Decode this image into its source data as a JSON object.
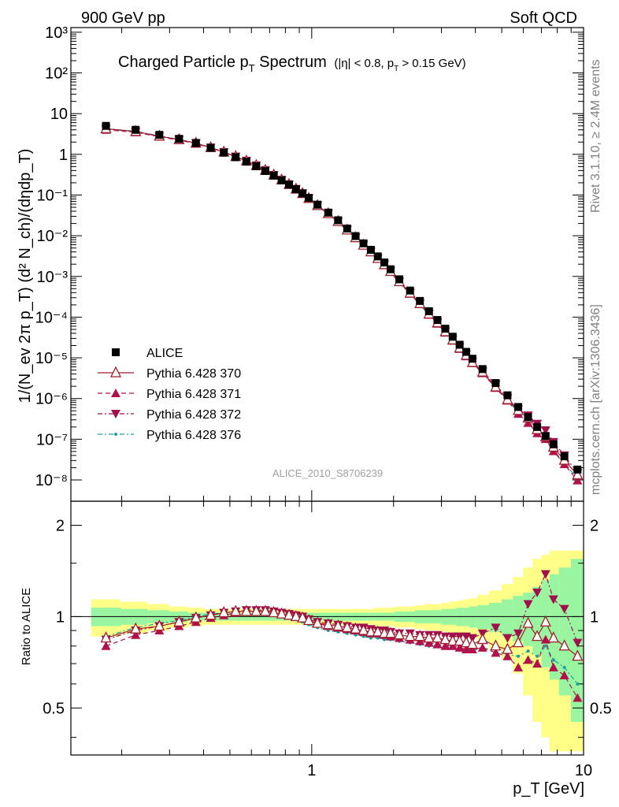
{
  "header": {
    "left": "900 GeV pp",
    "right": "Soft QCD"
  },
  "title": {
    "main": "Charged Particle p",
    "main_sub": "T",
    "main_tail": " Spectrum",
    "cuts_a": "(|η| < 0.8, p",
    "cuts_sub": "T",
    "cuts_b": " > 0.15 GeV)"
  },
  "side_labels": {
    "rivet": "Rivet 3.1.10, ≥ 2.4M events",
    "mcplots": "mcplots.cern.ch [arXiv:1306.3436]"
  },
  "analysis_id": "ALICE_2010_S8706239",
  "axes": {
    "y_main": "1/(N_ev 2π p_T) (d² N_ch)/(dηdp_T)",
    "y_ratio": "Ratio to ALICE",
    "x": "p_T [GeV]",
    "x_ticks": [
      "1",
      "10"
    ],
    "y_main_ticks": [
      "10⁻⁸",
      "10⁻⁷",
      "10⁻⁶",
      "10⁻⁵",
      "10⁻⁴",
      "10⁻³",
      "10⁻²",
      "10⁻¹",
      "1",
      "10",
      "10²",
      "10³"
    ],
    "y_ratio_ticks": [
      "0.5",
      "1",
      "2"
    ]
  },
  "colors": {
    "data": "#000000",
    "p370": "#A01C2C",
    "p371": "#B0124C",
    "p372": "#A0104E",
    "p376": "#17A2A0",
    "band_inner": "#99F5A0",
    "band_outer": "#FFFF88"
  },
  "chart_data": {
    "type": "scatter",
    "x_scale": "log",
    "y_scale": "log",
    "xlim": [
      0.13,
      10
    ],
    "ylim": [
      3e-09,
      1300
    ],
    "ratio_ylim": [
      0.35,
      2.4
    ],
    "legend_position": "bottom-left",
    "x": [
      0.175,
      0.225,
      0.275,
      0.325,
      0.375,
      0.425,
      0.475,
      0.525,
      0.575,
      0.625,
      0.675,
      0.725,
      0.775,
      0.825,
      0.875,
      0.925,
      0.975,
      1.05,
      1.15,
      1.25,
      1.35,
      1.45,
      1.55,
      1.65,
      1.75,
      1.85,
      1.95,
      2.1,
      2.3,
      2.5,
      2.7,
      2.9,
      3.1,
      3.3,
      3.5,
      3.7,
      3.9,
      4.25,
      4.75,
      5.25,
      5.75,
      6.25,
      6.75,
      7.25,
      7.75,
      8.5,
      9.5
    ],
    "series": [
      {
        "name": "ALICE",
        "marker": "square",
        "values": [
          5.0,
          4.0,
          3.0,
          2.4,
          1.9,
          1.45,
          1.1,
          0.85,
          0.66,
          0.51,
          0.39,
          0.3,
          0.23,
          0.18,
          0.14,
          0.11,
          0.085,
          0.058,
          0.037,
          0.024,
          0.015,
          0.0098,
          0.0065,
          0.0045,
          0.0031,
          0.0022,
          0.0015,
          0.00085,
          0.00045,
          0.00025,
          0.00014,
          8.5e-05,
          5.2e-05,
          3.3e-05,
          2.1e-05,
          1.4e-05,
          9.5e-06,
          5.3e-06,
          2.4e-06,
          1.2e-06,
          6.2e-07,
          3.5e-07,
          2e-07,
          1.2e-07,
          7.5e-08,
          3.8e-08,
          1.8e-08
        ]
      },
      {
        "name": "Pythia 6.428 370",
        "marker": "open-triangle-up",
        "line": "solid",
        "ratio": [
          0.85,
          0.91,
          0.93,
          0.96,
          0.99,
          1.01,
          1.03,
          1.04,
          1.04,
          1.04,
          1.04,
          1.03,
          1.02,
          1.01,
          1.0,
          0.99,
          0.97,
          0.95,
          0.94,
          0.93,
          0.92,
          0.91,
          0.9,
          0.89,
          0.89,
          0.88,
          0.88,
          0.87,
          0.86,
          0.86,
          0.85,
          0.85,
          0.84,
          0.83,
          0.83,
          0.82,
          0.81,
          0.84,
          0.8,
          0.78,
          0.82,
          0.95,
          0.86,
          0.96,
          0.85,
          0.8,
          0.74
        ]
      },
      {
        "name": "Pythia 6.428 371",
        "marker": "triangle-up",
        "line": "dashed",
        "ratio": [
          0.8,
          0.87,
          0.9,
          0.93,
          0.96,
          0.99,
          1.01,
          1.03,
          1.04,
          1.04,
          1.04,
          1.03,
          1.02,
          1.01,
          1.0,
          0.99,
          0.97,
          0.95,
          0.93,
          0.92,
          0.91,
          0.9,
          0.89,
          0.88,
          0.88,
          0.87,
          0.86,
          0.85,
          0.84,
          0.83,
          0.82,
          0.81,
          0.8,
          0.8,
          0.79,
          0.78,
          0.78,
          0.79,
          0.76,
          0.74,
          0.68,
          0.72,
          0.7,
          0.84,
          0.68,
          0.64,
          0.54
        ]
      },
      {
        "name": "Pythia 6.428 372",
        "marker": "triangle-down",
        "line": "dash-dot",
        "ratio": [
          0.84,
          0.9,
          0.93,
          0.96,
          0.99,
          1.01,
          1.03,
          1.04,
          1.05,
          1.05,
          1.05,
          1.04,
          1.03,
          1.02,
          1.01,
          1.0,
          0.98,
          0.96,
          0.95,
          0.94,
          0.93,
          0.92,
          0.92,
          0.91,
          0.9,
          0.9,
          0.89,
          0.88,
          0.88,
          0.87,
          0.87,
          0.87,
          0.86,
          0.86,
          0.86,
          0.86,
          0.85,
          0.88,
          0.92,
          0.85,
          0.88,
          1.1,
          1.2,
          1.38,
          1.14,
          1.06,
          0.82
        ]
      },
      {
        "name": "Pythia 6.428 376",
        "marker": "dot",
        "line": "dash-dot",
        "ratio": [
          0.86,
          0.92,
          0.95,
          0.97,
          1.0,
          1.02,
          1.03,
          1.04,
          1.04,
          1.04,
          1.04,
          1.03,
          1.02,
          1.0,
          0.98,
          0.96,
          0.94,
          0.92,
          0.9,
          0.89,
          0.88,
          0.87,
          0.86,
          0.85,
          0.85,
          0.84,
          0.84,
          0.83,
          0.82,
          0.81,
          0.8,
          0.8,
          0.79,
          0.79,
          0.78,
          0.78,
          0.77,
          0.79,
          0.77,
          0.75,
          0.74,
          0.77,
          0.74,
          0.8,
          0.72,
          0.68,
          0.6
        ]
      }
    ],
    "band_inner_halfwidth": [
      0.07,
      0.06,
      0.05,
      0.04,
      0.03,
      0.03,
      0.03,
      0.03,
      0.03,
      0.03,
      0.03,
      0.03,
      0.03,
      0.03,
      0.03,
      0.03,
      0.03,
      0.03,
      0.03,
      0.03,
      0.03,
      0.03,
      0.03,
      0.03,
      0.03,
      0.03,
      0.03,
      0.04,
      0.04,
      0.05,
      0.05,
      0.05,
      0.06,
      0.06,
      0.07,
      0.07,
      0.08,
      0.09,
      0.11,
      0.14,
      0.17,
      0.2,
      0.25,
      0.32,
      0.38,
      0.45,
      0.55
    ],
    "band_outer_halfwidth": [
      0.14,
      0.12,
      0.1,
      0.08,
      0.07,
      0.06,
      0.06,
      0.06,
      0.06,
      0.06,
      0.06,
      0.06,
      0.06,
      0.06,
      0.06,
      0.06,
      0.06,
      0.06,
      0.06,
      0.06,
      0.06,
      0.06,
      0.06,
      0.06,
      0.07,
      0.07,
      0.07,
      0.08,
      0.08,
      0.09,
      0.1,
      0.1,
      0.11,
      0.12,
      0.13,
      0.14,
      0.15,
      0.18,
      0.22,
      0.28,
      0.35,
      0.45,
      0.55,
      0.6,
      0.65,
      0.65,
      0.65
    ]
  }
}
